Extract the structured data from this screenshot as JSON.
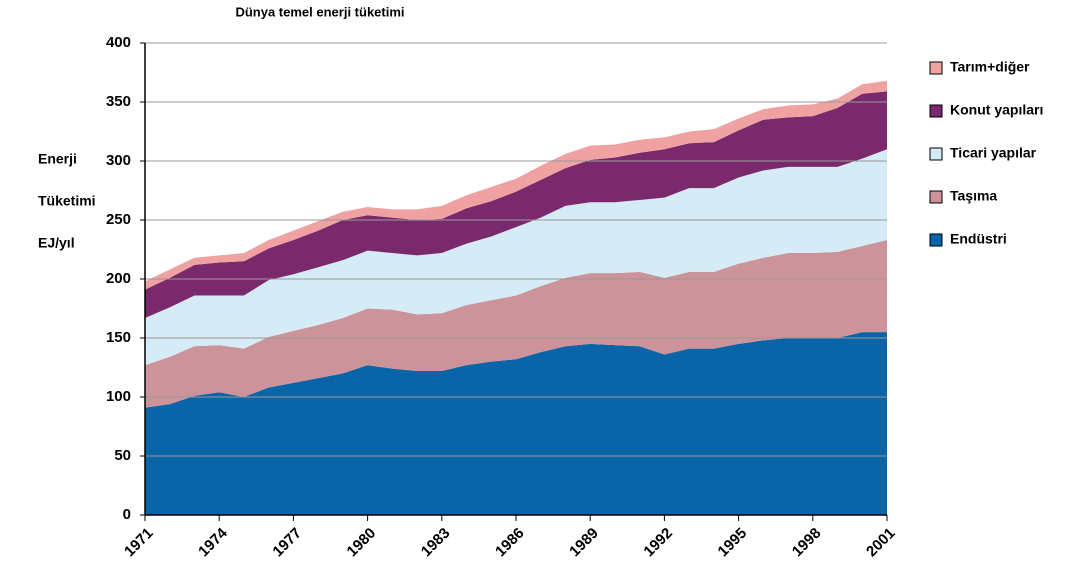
{
  "chart_data": {
    "type": "stacked_area",
    "title": "Dünya temel enerji tüketimi",
    "y_label": [
      "Enerji",
      "Tüketimi",
      "EJ/yıl"
    ],
    "x": [
      1971,
      1972,
      1973,
      1974,
      1975,
      1976,
      1977,
      1978,
      1979,
      1980,
      1981,
      1982,
      1983,
      1984,
      1985,
      1986,
      1987,
      1988,
      1989,
      1990,
      1991,
      1992,
      1993,
      1994,
      1995,
      1996,
      1997,
      1998,
      1999,
      2000,
      2001
    ],
    "xlim": [
      1971,
      2001
    ],
    "xticks": [
      1971,
      1974,
      1977,
      1980,
      1983,
      1986,
      1989,
      1992,
      1995,
      1998,
      2001
    ],
    "ylim": [
      0,
      400
    ],
    "yticks": [
      0,
      50,
      100,
      150,
      200,
      250,
      300,
      350,
      400
    ],
    "grid": true,
    "series": [
      {
        "name": "Endüstri",
        "color": "#0a65a8",
        "values": [
          91,
          94,
          101,
          104,
          100,
          108,
          112,
          116,
          120,
          127,
          124,
          122,
          122,
          127,
          130,
          132,
          138,
          143,
          145,
          144,
          143,
          136,
          141,
          141,
          145,
          148,
          150,
          150,
          150,
          155,
          155
        ]
      },
      {
        "name": "Taşıma",
        "color": "#cc939b",
        "values": [
          36,
          40,
          42,
          40,
          41,
          43,
          44,
          45,
          47,
          48,
          50,
          48,
          49,
          51,
          52,
          54,
          56,
          58,
          60,
          61,
          63,
          65,
          65,
          65,
          68,
          70,
          72,
          72,
          73,
          73,
          78
        ]
      },
      {
        "name": "Ticari yapılar",
        "color": "#d5ebf5",
        "values": [
          40,
          42,
          43,
          42,
          45,
          48,
          48,
          49,
          49,
          49,
          48,
          50,
          51,
          52,
          54,
          58,
          58,
          61,
          60,
          60,
          61,
          68,
          71,
          71,
          73,
          74,
          73,
          73,
          72,
          74,
          77
        ]
      },
      {
        "name": "Konut yapıları",
        "color": "#7a2a6c",
        "values": [
          24,
          25,
          26,
          28,
          29,
          27,
          29,
          31,
          34,
          30,
          30,
          30,
          29,
          30,
          30,
          30,
          32,
          32,
          36,
          38,
          40,
          41,
          38,
          39,
          40,
          43,
          42,
          43,
          50,
          55,
          49
        ]
      },
      {
        "name": "Tarım+diğer",
        "color": "#f0a2a2",
        "values": [
          7,
          7,
          6,
          6,
          7,
          7,
          8,
          8,
          7,
          7,
          7,
          9,
          11,
          11,
          12,
          11,
          12,
          12,
          12,
          11,
          11,
          10,
          10,
          11,
          10,
          9,
          10,
          10,
          8,
          8,
          9
        ]
      }
    ]
  }
}
